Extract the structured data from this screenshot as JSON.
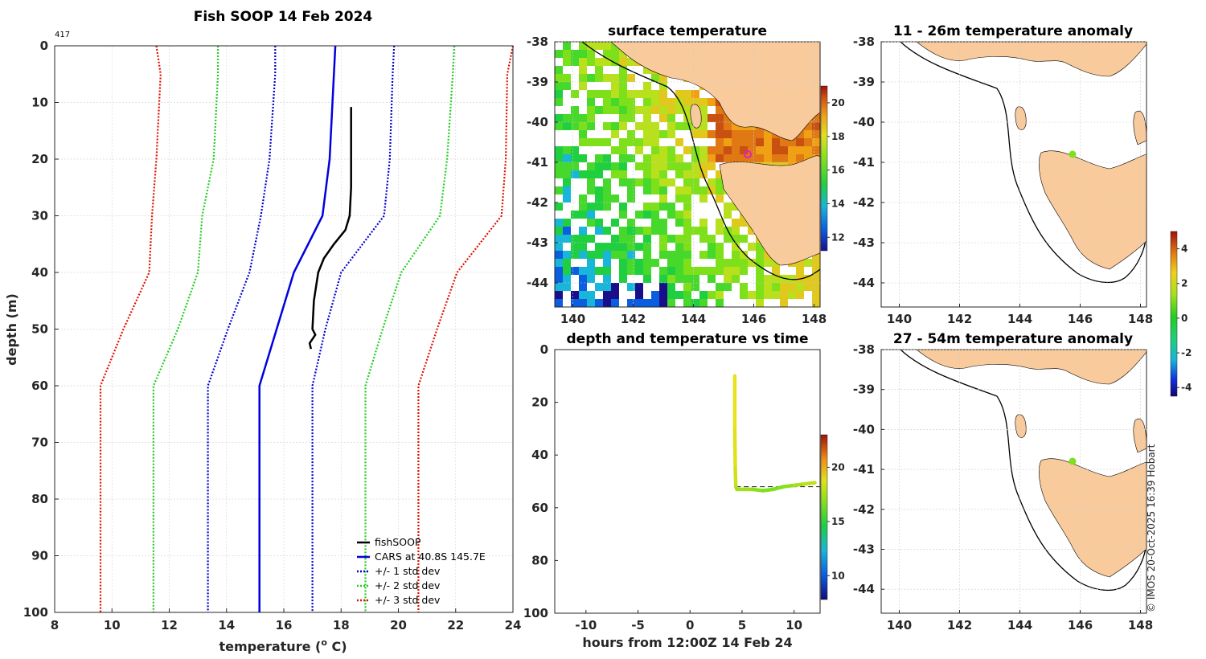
{
  "figure": {
    "copyright": "© IMOS 20-Oct-2025 16:39 Hobart",
    "colors": {
      "land": "#f9cb9c",
      "profile": "#000000",
      "cars": "#0000e0",
      "sd1": "#0000d0",
      "sd2": "#22cc22",
      "sd3": "#e01000",
      "sea_bg": "#ffffff",
      "marker": "#7fe01e"
    }
  },
  "chart_data": [
    {
      "id": "profile",
      "type": "line",
      "title": "Fish SOOP 14 Feb 2024",
      "corner_note": "417",
      "xlabel": "temperature (",
      "xlabel_sup": "o",
      "xlabel_end": " C)",
      "ylabel": "depth (m)",
      "xlim": [
        8,
        24
      ],
      "ylim": [
        0,
        100
      ],
      "xticks": [
        "8",
        "10",
        "12",
        "14",
        "16",
        "18",
        "20",
        "22",
        "24"
      ],
      "yticks": [
        "0",
        "10",
        "20",
        "30",
        "40",
        "50",
        "60",
        "70",
        "80",
        "90",
        "100"
      ],
      "legend": [
        "fishSOOP",
        "CARS at 40.8S 145.7E",
        "+/- 1 std dev",
        "+/- 2 std dev",
        "+/- 3 std dev"
      ],
      "depths": [
        0,
        5,
        20,
        30,
        40,
        50,
        60,
        100
      ],
      "series": [
        {
          "name": "cars",
          "style": "solid",
          "color": "#0000e0",
          "temps": [
            17.8,
            17.75,
            17.6,
            17.35,
            16.35,
            15.75,
            15.15,
            15.15
          ]
        },
        {
          "name": "minus1",
          "style": "dot",
          "color": "#0000d0",
          "temps": [
            15.7,
            15.7,
            15.5,
            15.2,
            14.8,
            14.05,
            13.35,
            13.35
          ]
        },
        {
          "name": "plus1",
          "style": "dot",
          "color": "#0000d0",
          "temps": [
            19.85,
            19.8,
            19.7,
            19.5,
            18.0,
            17.45,
            17.0,
            17.0
          ]
        },
        {
          "name": "minus2",
          "style": "dot",
          "color": "#22cc22",
          "temps": [
            13.7,
            13.7,
            13.55,
            13.15,
            13.0,
            12.3,
            11.45,
            11.45
          ]
        },
        {
          "name": "plus2",
          "style": "dot",
          "color": "#22cc22",
          "temps": [
            21.95,
            21.9,
            21.7,
            21.45,
            20.1,
            19.45,
            18.85,
            18.85
          ]
        },
        {
          "name": "minus3",
          "style": "dot",
          "color": "#e01000",
          "temps": [
            11.55,
            11.7,
            11.55,
            11.4,
            11.3,
            10.4,
            9.6,
            9.6
          ]
        },
        {
          "name": "plus3",
          "style": "dot",
          "color": "#e01000",
          "temps": [
            24.0,
            23.8,
            23.75,
            23.6,
            22.05,
            21.35,
            20.7,
            20.7
          ]
        }
      ],
      "fishsoop": {
        "depths": [
          10.8,
          15,
          20,
          25,
          30,
          32.5,
          35,
          37.5,
          40,
          45,
          50,
          51,
          52.5,
          53.5
        ],
        "temps": [
          18.35,
          18.35,
          18.35,
          18.35,
          18.3,
          18.15,
          17.75,
          17.4,
          17.2,
          17.05,
          17.0,
          17.1,
          16.9,
          16.95
        ]
      }
    },
    {
      "id": "sst_map",
      "type": "heatmap",
      "title": "surface temperature",
      "xlim": [
        139.4,
        148.2
      ],
      "ylim": [
        -44.6,
        -38
      ],
      "xticks": [
        "140",
        "142",
        "144",
        "146",
        "148"
      ],
      "yticks": [
        "-38",
        "-39",
        "-40",
        "-41",
        "-42",
        "-43",
        "-44"
      ],
      "colorbar_ticks": [
        "12",
        "14",
        "16",
        "18",
        "20"
      ],
      "colorbar_range": [
        11.2,
        21
      ],
      "station": {
        "lon": 145.7,
        "lat": -40.8
      }
    },
    {
      "id": "depth_time",
      "type": "line",
      "title": "depth and temperature vs time",
      "xlabel": "hours from 12:00Z 14 Feb 24",
      "xlim": [
        -13,
        12.5
      ],
      "ylim": [
        0,
        100
      ],
      "xticks": [
        "-10",
        "-5",
        "0",
        "5",
        "10"
      ],
      "yticks": [
        "0",
        "20",
        "40",
        "60",
        "80",
        "100"
      ],
      "colorbar_ticks": [
        "10",
        "15",
        "20"
      ],
      "colorbar_range": [
        7.8,
        23
      ],
      "ref_depth": 52,
      "hours": [
        4.3,
        4.3,
        4.35,
        4.4,
        4.5,
        6,
        7,
        8,
        9,
        10,
        11,
        12
      ],
      "depths": [
        10,
        30,
        45,
        52,
        53,
        53,
        53.5,
        53,
        52,
        51.5,
        51,
        50.5
      ]
    },
    {
      "id": "anomaly_11_26",
      "type": "heatmap",
      "title": "11 - 26m temperature anomaly",
      "xlim": [
        139.4,
        148.2
      ],
      "ylim": [
        -44.6,
        -38
      ],
      "xticks": [
        "140",
        "142",
        "144",
        "146",
        "148"
      ],
      "yticks": [
        "-38",
        "-39",
        "-40",
        "-41",
        "-42",
        "-43",
        "-44"
      ],
      "colorbar_ticks": [
        "4",
        "2",
        "0",
        "-2",
        "-4"
      ],
      "colorbar_range": [
        -4.5,
        5
      ],
      "station": {
        "lon": 145.7,
        "lat": -40.8,
        "anomaly": 1.2
      }
    },
    {
      "id": "anomaly_27_54",
      "type": "heatmap",
      "title": "27 - 54m temperature anomaly",
      "xlim": [
        139.4,
        148.2
      ],
      "ylim": [
        -44.6,
        -38
      ],
      "xticks": [
        "140",
        "142",
        "144",
        "146",
        "148"
      ],
      "yticks": [
        "-38",
        "-39",
        "-40",
        "-41",
        "-42",
        "-43",
        "-44"
      ],
      "station": {
        "lon": 145.7,
        "lat": -40.8,
        "anomaly": 1.2
      }
    }
  ]
}
